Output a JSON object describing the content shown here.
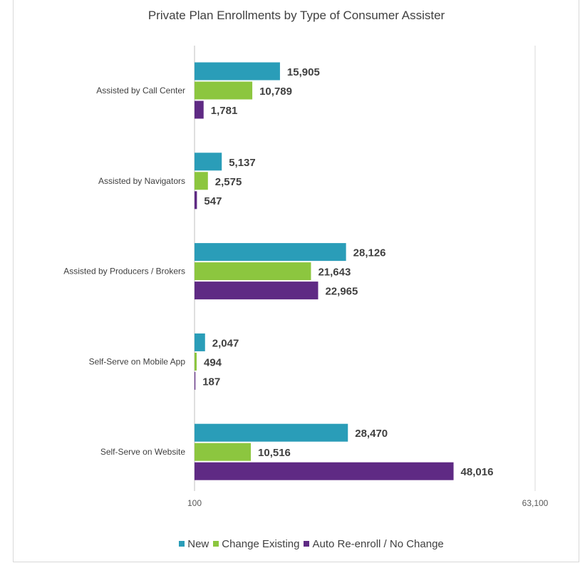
{
  "chart_data": {
    "type": "bar",
    "orientation": "horizontal",
    "title": "Private Plan Enrollments by Type of Consumer Assister",
    "categories": [
      "Assisted by Call Center",
      "Assisted by Navigators",
      "Assisted by Producers / Brokers",
      "Self-Serve on Mobile App",
      "Self-Serve on Website"
    ],
    "series": [
      {
        "name": "New",
        "color": "#2a9db8",
        "values": [
          15905,
          5137,
          28126,
          2047,
          28470
        ]
      },
      {
        "name": "Change Existing",
        "color": "#8cc63f",
        "values": [
          10789,
          2575,
          21643,
          494,
          10516
        ]
      },
      {
        "name": "Auto Re-enroll / No Change",
        "color": "#5f2a84",
        "values": [
          1781,
          547,
          22965,
          187,
          48016
        ]
      }
    ],
    "value_labels": [
      [
        "15,905",
        "5,137",
        "28,126",
        "2,047",
        "28,470"
      ],
      [
        "10,789",
        "2,575",
        "21,643",
        "494",
        "10,516"
      ],
      [
        "1,781",
        "547",
        "22,965",
        "187",
        "48,016"
      ]
    ],
    "xlim": [
      100,
      63100
    ],
    "x_tick_labels": [
      "100",
      "63,100"
    ],
    "grid": "vertical line at max",
    "legend": "bottom"
  }
}
